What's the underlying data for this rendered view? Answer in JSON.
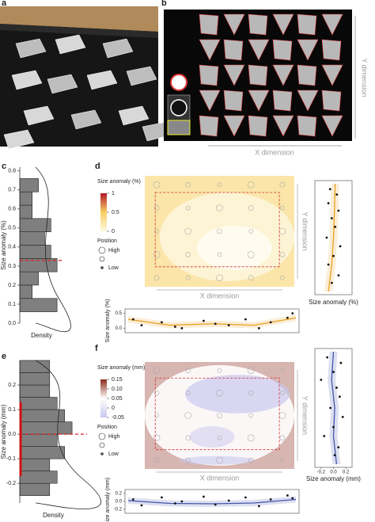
{
  "panel_labels": [
    "a",
    "b",
    "c",
    "d",
    "e",
    "f"
  ],
  "photo_b": {
    "xlabel": "X dimension",
    "ylabel": "Y dimension"
  },
  "chart_data": [
    {
      "type": "histogram",
      "orientation": "horizontal",
      "ylabel": "Size anomaly (%)",
      "xlabel": "Density",
      "bins": [
        0.06,
        0.13,
        0.2,
        0.27,
        0.34,
        0.41,
        0.48,
        0.55,
        0.62,
        0.69,
        0.76
      ],
      "counts": [
        6,
        2,
        3,
        6,
        5,
        4,
        5,
        2,
        2,
        3
      ],
      "color": "#7f7f7f",
      "xlim": [
        0,
        7
      ],
      "ylim": [
        0,
        0.82
      ],
      "yticks": [
        {
          "value": 0,
          "label": "0.0"
        },
        0.1,
        0.2,
        0.3,
        0.4,
        0.5,
        0.6,
        0.7,
        0.8
      ],
      "reference_line": 0.33
    },
    {
      "type": "heatmap",
      "legend_title": "Size anomaly (%)",
      "clim": [
        0,
        1
      ],
      "cticks": [
        0,
        0.5,
        1
      ],
      "colors": [
        "#fdf8e0",
        "#f7cf62",
        "#b2182b"
      ],
      "position_title": "Position",
      "position_labels": [
        "High",
        "Low"
      ],
      "xlabel": "X dimension",
      "ylabel": "Y dimension"
    },
    {
      "type": "scatter",
      "orientation": "vertical",
      "xlabel": "Size anomaly (%)",
      "xlim": [
        -0.3,
        0.8
      ],
      "color": "#e8a020",
      "pos": [
        0.95,
        0.9,
        0.82,
        0.75,
        0.68,
        0.6,
        0.5,
        0.42,
        0.33,
        0.25,
        0.15,
        0.08
      ],
      "values": [
        0.15,
        0.35,
        0.1,
        0.4,
        0.2,
        0.3,
        0.05,
        0.45,
        0.25,
        0.1,
        0.4,
        0.2
      ],
      "fit_pos": [
        0,
        0.25,
        0.5,
        0.75,
        1
      ],
      "fit": [
        0.1,
        0.2,
        0.25,
        0.28,
        0.3
      ]
    },
    {
      "type": "scatter",
      "orientation": "horizontal",
      "ylabel": "Size anomaly (%)",
      "ylim": [
        -0.15,
        0.65
      ],
      "color": "#e8a020",
      "yticks": [
        {
          "value": 0,
          "label": "0.0"
        },
        0.5
      ],
      "pos": [
        0.03,
        0.08,
        0.2,
        0.28,
        0.32,
        0.45,
        0.52,
        0.6,
        0.7,
        0.78,
        0.85,
        0.95,
        0.98
      ],
      "values": [
        0.3,
        0.1,
        0.2,
        0.05,
        0.0,
        0.25,
        0.15,
        0.1,
        0.3,
        0.0,
        0.2,
        0.35,
        0.5
      ],
      "fit_pos": [
        0,
        0.25,
        0.5,
        0.75,
        1
      ],
      "fit": [
        0.3,
        0.1,
        0.15,
        0.1,
        0.35
      ]
    },
    {
      "type": "histogram",
      "orientation": "horizontal",
      "ylabel": "Size anomaly (mm)",
      "xlabel": "Density",
      "bins": [
        -0.25,
        -0.2,
        -0.15,
        -0.1,
        -0.05,
        0,
        0.05,
        0.1,
        0.15,
        0.2,
        0.25,
        0.3
      ],
      "counts": [
        4,
        5,
        4,
        6,
        5,
        7,
        6,
        5,
        4,
        4,
        4
      ],
      "color": "#7f7f7f",
      "xlim": [
        0,
        9
      ],
      "ylim": [
        -0.28,
        0.3
      ],
      "yticks": [
        -0.2,
        -0.1,
        {
          "value": 0,
          "label": "0.0"
        },
        0.1,
        0.2
      ],
      "reference_line": 0,
      "range": [
        -0.17,
        0.13
      ]
    },
    {
      "type": "heatmap",
      "legend_title": "Size anomaly (mm)",
      "clim": [
        -0.05,
        0.15
      ],
      "cticks": [
        0.15,
        {
          "value": 0.1,
          "label": "0.10"
        },
        0.05,
        0,
        -0.05
      ],
      "colors": [
        "#c9c8ee",
        "#ffffff",
        "#8b2c1c"
      ],
      "position_title": "Position",
      "position_labels": [
        "High",
        "Low"
      ],
      "xlabel": "X dimension",
      "ylabel": "Y dimension"
    },
    {
      "type": "scatter",
      "orientation": "vertical",
      "xlabel": "Size anomaly (mm)",
      "xlim": [
        -0.3,
        0.3
      ],
      "color": "#4455aa",
      "xticks": [
        -0.2,
        {
          "value": 0,
          "label": "0.0"
        },
        0.2
      ],
      "pos": [
        0.95,
        0.9,
        0.82,
        0.75,
        0.68,
        0.6,
        0.5,
        0.42,
        0.33,
        0.25,
        0.15,
        0.08
      ],
      "values": [
        -0.1,
        0.12,
        0.0,
        -0.2,
        0.05,
        0.1,
        -0.05,
        0.15,
        0.0,
        -0.15,
        0.08,
        0.02
      ],
      "fit_pos": [
        0,
        0.25,
        0.5,
        0.75,
        1
      ],
      "fit": [
        0.05,
        0.0,
        0.02,
        -0.03,
        0.0
      ]
    },
    {
      "type": "scatter",
      "orientation": "horizontal",
      "ylabel": "Size anomaly (mm)",
      "ylim": [
        -0.3,
        0.3
      ],
      "color": "#4455aa",
      "yticks": [
        -0.2,
        {
          "value": 0,
          "label": "0.0"
        },
        0.2
      ],
      "pos": [
        0.03,
        0.08,
        0.2,
        0.28,
        0.32,
        0.45,
        0.52,
        0.6,
        0.7,
        0.78,
        0.85,
        0.95,
        0.98
      ],
      "values": [
        0.05,
        -0.1,
        0.1,
        -0.05,
        0.0,
        0.12,
        -0.08,
        0.02,
        0.1,
        -0.12,
        0.05,
        0.15,
        0.08
      ],
      "fit_pos": [
        0,
        0.25,
        0.5,
        0.75,
        1
      ],
      "fit": [
        0.02,
        -0.05,
        -0.06,
        -0.04,
        0.05
      ]
    }
  ]
}
